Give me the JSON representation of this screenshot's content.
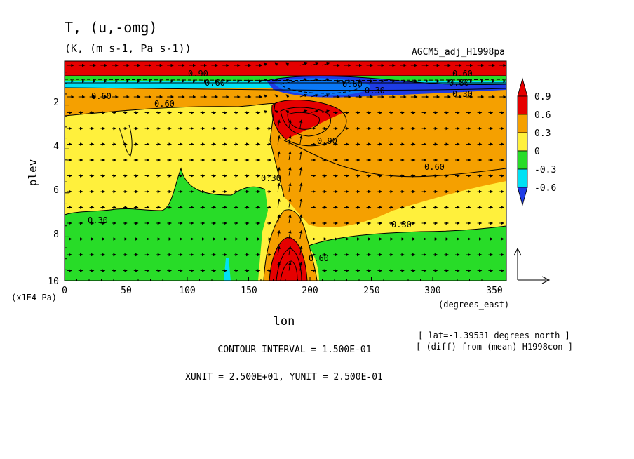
{
  "chart_data": {
    "type": "heatmap",
    "title": "T, (u,-omg)",
    "subtitle": "(K, (m s-1, Pa s-1))",
    "run_label": "AGCM5_adj_H1998pa",
    "xlabel": "lon",
    "xunit": "(degrees_east)",
    "ylabel": "plev",
    "yunit": "(x1E4 Pa)",
    "xlim": [
      0,
      360
    ],
    "ylim": [
      10,
      0
    ],
    "x_ticks": [
      "0",
      "50",
      "100",
      "150",
      "200",
      "250",
      "300",
      "350"
    ],
    "y_ticks": [
      "2",
      "4",
      "6",
      "8",
      "10"
    ],
    "contour_labels": [
      "0.60",
      "0.90",
      "0.60",
      "0.60",
      "0.30",
      "0.60",
      "0.30",
      "0.60",
      "0.90",
      "0.60",
      "0.30",
      "0.30",
      "0.30",
      "0.60",
      "0.80"
    ],
    "colorbar": {
      "labels": [
        "0.9",
        "0.6",
        "0.3",
        "0",
        "-0.3",
        "-0.6"
      ],
      "colors": [
        "#e60000",
        "#f5a000",
        "#fff03c",
        "#28dc28",
        "#00e1f5",
        "#0a78f5",
        "#1e3ce6",
        "#c800c8"
      ]
    },
    "info": {
      "lat": "[ lat=-1.39531 degrees_north ]",
      "diff": "[ (diff) from (mean) H1998con ]",
      "contour_interval": "CONTOUR INTERVAL = 1.500E-01",
      "units": "XUNIT = 2.500E+01, YUNIT = 2.500E-01"
    }
  }
}
